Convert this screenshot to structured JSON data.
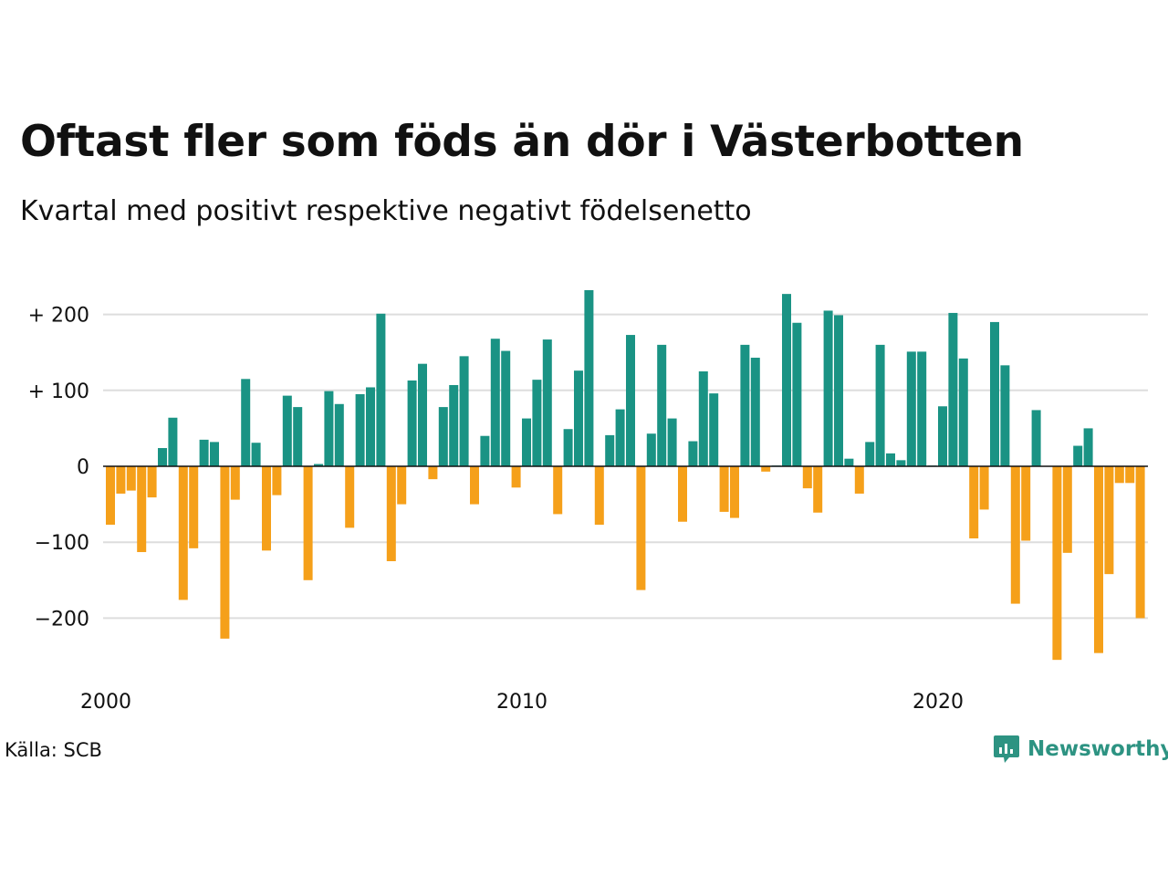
{
  "title": "Oftast fler som föds än dör i Västerbotten",
  "subtitle": "Kvartal med positivt respektive negativt födelsenetto",
  "source": "Källa: SCB",
  "brand": {
    "name": "Newsworthy",
    "icon": "newsworthy-logo-icon",
    "color": "#2d9382"
  },
  "colors": {
    "positive": "#1a9384",
    "negative": "#f5a01a",
    "grid": "#dddddd",
    "zero": "#111111"
  },
  "chart_data": {
    "type": "bar",
    "title": "Oftast fler som föds än dör i Västerbotten",
    "subtitle": "Kvartal med positivt respektive negativt födelsenetto",
    "xlabel": "",
    "ylabel": "",
    "ylim": [
      -270,
      245
    ],
    "xlim": [
      2000,
      2025
    ],
    "grid": true,
    "legend": "none",
    "y_ticks": [
      {
        "value": 200,
        "label": "+ 200"
      },
      {
        "value": 100,
        "label": "+ 100"
      },
      {
        "value": 0,
        "label": "0"
      },
      {
        "value": -100,
        "label": "−100"
      },
      {
        "value": -200,
        "label": "−200"
      }
    ],
    "x_ticks": [
      {
        "value": 2000,
        "label": "2000"
      },
      {
        "value": 2010,
        "label": "2010"
      },
      {
        "value": 2020,
        "label": "2020"
      }
    ],
    "categories": [
      "2000 K1",
      "2000 K2",
      "2000 K3",
      "2000 K4",
      "2001 K1",
      "2001 K2",
      "2001 K3",
      "2001 K4",
      "2002 K1",
      "2002 K2",
      "2002 K3",
      "2002 K4",
      "2003 K1",
      "2003 K2",
      "2003 K3",
      "2003 K4",
      "2004 K1",
      "2004 K2",
      "2004 K3",
      "2004 K4",
      "2005 K1",
      "2005 K2",
      "2005 K3",
      "2005 K4",
      "2006 K1",
      "2006 K2",
      "2006 K3",
      "2006 K4",
      "2007 K1",
      "2007 K2",
      "2007 K3",
      "2007 K4",
      "2008 K1",
      "2008 K2",
      "2008 K3",
      "2008 K4",
      "2009 K1",
      "2009 K2",
      "2009 K3",
      "2009 K4",
      "2010 K1",
      "2010 K2",
      "2010 K3",
      "2010 K4",
      "2011 K1",
      "2011 K2",
      "2011 K3",
      "2011 K4",
      "2012 K1",
      "2012 K2",
      "2012 K3",
      "2012 K4",
      "2013 K1",
      "2013 K2",
      "2013 K3",
      "2013 K4",
      "2014 K1",
      "2014 K2",
      "2014 K3",
      "2014 K4",
      "2015 K1",
      "2015 K2",
      "2015 K3",
      "2015 K4",
      "2016 K1",
      "2016 K2",
      "2016 K3",
      "2016 K4",
      "2017 K1",
      "2017 K2",
      "2017 K3",
      "2017 K4",
      "2018 K1",
      "2018 K2",
      "2018 K3",
      "2018 K4",
      "2019 K1",
      "2019 K2",
      "2019 K3",
      "2019 K4",
      "2020 K1",
      "2020 K2",
      "2020 K3",
      "2020 K4",
      "2021 K1",
      "2021 K2",
      "2021 K3",
      "2021 K4",
      "2022 K1",
      "2022 K2",
      "2022 K3",
      "2022 K4",
      "2023 K1",
      "2023 K2",
      "2023 K3",
      "2023 K4",
      "2024 K1",
      "2024 K2",
      "2024 K3",
      "2024 K4"
    ],
    "values": [
      -77,
      -36,
      -32,
      -113,
      -41,
      24,
      64,
      -176,
      -108,
      35,
      32,
      -227,
      -44,
      115,
      31,
      -111,
      -38,
      93,
      78,
      -150,
      3,
      99,
      82,
      -81,
      95,
      104,
      201,
      -125,
      -50,
      113,
      135,
      -17,
      78,
      107,
      145,
      -50,
      40,
      168,
      152,
      -28,
      63,
      114,
      167,
      -63,
      49,
      126,
      232,
      -77,
      41,
      75,
      173,
      -163,
      43,
      160,
      63,
      -73,
      33,
      125,
      96,
      -60,
      -68,
      160,
      143,
      -7,
      1,
      227,
      189,
      -29,
      -61,
      205,
      199,
      10,
      -36,
      32,
      160,
      17,
      8,
      151,
      151,
      1,
      79,
      202,
      142,
      -95,
      -57,
      190,
      133,
      -181,
      -98,
      74,
      0,
      -255,
      -114,
      27,
      50,
      -246,
      -142,
      -22,
      -22,
      -200
    ]
  }
}
